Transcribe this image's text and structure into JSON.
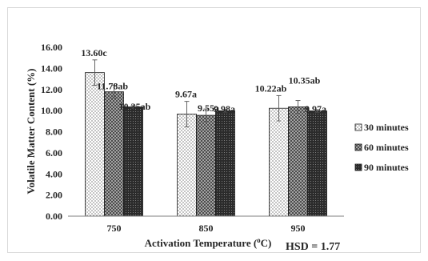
{
  "chart_data": {
    "type": "bar",
    "title": "",
    "xlabel": "Activation Temperature (oC)",
    "ylabel": "Volatile Matter Content (%)",
    "categories": [
      "750",
      "850",
      "950"
    ],
    "ylim": [
      0,
      16
    ],
    "yticks": [
      "0.00",
      "2.00",
      "4.00",
      "6.00",
      "8.00",
      "10.00",
      "12.00",
      "14.00",
      "16.00"
    ],
    "grid": false,
    "legend_position": "right",
    "annotation": "HSD = 1.77",
    "series": [
      {
        "name": "30 minutes",
        "pattern": "dots-sparse",
        "values": [
          13.6,
          9.67,
          10.22
        ],
        "errors": [
          1.2,
          1.2,
          1.2
        ],
        "labels": [
          "13.60c",
          "9.67a",
          "10.22ab"
        ]
      },
      {
        "name": "60 minutes",
        "pattern": "crosshatch",
        "values": [
          11.78,
          9.55,
          10.35
        ],
        "errors": [
          0.6,
          0.6,
          0.6
        ],
        "labels": [
          "11.78ab",
          "9.55a",
          "10.35ab"
        ]
      },
      {
        "name": "90 minutes",
        "pattern": "dots-dense",
        "values": [
          10.35,
          9.98,
          9.97
        ],
        "errors": [
          0.12,
          0.12,
          0.12
        ],
        "labels": [
          "10.35ab",
          "9.98a",
          "9.97a"
        ]
      }
    ]
  }
}
